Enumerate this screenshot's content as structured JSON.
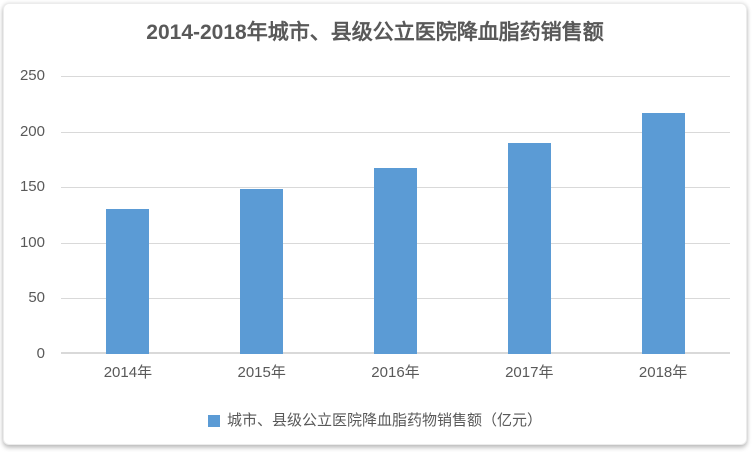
{
  "chart_data": {
    "type": "bar",
    "title": "2014-2018年城市、县级公立医院降血脂药销售额",
    "categories": [
      "2014年",
      "2015年",
      "2016年",
      "2017年",
      "2018年"
    ],
    "values": [
      130,
      148,
      167,
      190,
      217
    ],
    "series": [
      {
        "name": "城市、县级公立医院降血脂药物销售额（亿元）",
        "values": [
          130,
          148,
          167,
          190,
          217
        ]
      }
    ],
    "xlabel": "",
    "ylabel": "",
    "ylim": [
      0,
      250
    ],
    "yticks": [
      0,
      50,
      100,
      150,
      200,
      250
    ],
    "grid": true,
    "legend_position": "bottom",
    "colors": {
      "bar": "#5B9BD5",
      "grid": "#D9D9D9",
      "axis_text": "#595959",
      "title_text": "#595959",
      "background": "#FFFFFF"
    }
  },
  "legend": {
    "label": "城市、县级公立医院降血脂药物销售额（亿元）",
    "marker_color": "#5B9BD5"
  }
}
